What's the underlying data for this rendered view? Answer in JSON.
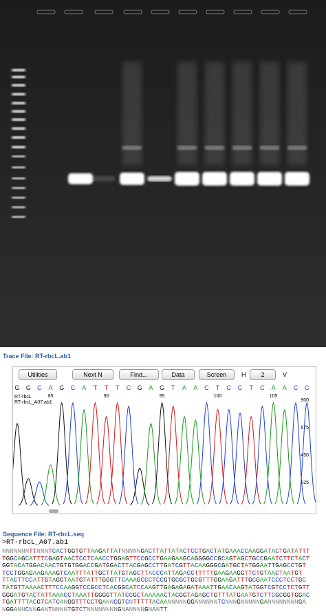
{
  "trace_file": {
    "label": "Trace File: RT-rbcL.ab1",
    "toolbar": {
      "buttons": [
        "Utilities",
        "Next N",
        "Find...",
        "Data",
        "Screen"
      ],
      "h_label": "H",
      "h_value": "2",
      "v_label": "V"
    },
    "bases": [
      "G",
      "G",
      "C",
      "A",
      "G",
      "C",
      "A",
      "T",
      "T",
      "T",
      "C",
      "G",
      "A",
      "G",
      "T",
      "A",
      "A",
      "C",
      "T",
      "C",
      "C",
      "T",
      "C",
      "A",
      "A",
      "C",
      "C"
    ],
    "positions": [
      85,
      90,
      95,
      100,
      105
    ],
    "trace_names": [
      "RT-rbcL",
      "RT-rbcL_A07.ab1"
    ],
    "scale": [
      900,
      675,
      450,
      225
    ]
  },
  "sequence_file": {
    "label": "Sequence File: RT-rbcL.seq",
    "header": ">RT-rbcL_A07.ab1",
    "lines": [
      "NNNNNNNTTNNNTCACTGGTGTTAAGATTATNNNNNGACTTATTATACTCCTGACTATGAAACCAAGGATACTGATATTT",
      "TGGCAGCATTTCGAGTAACTCCTCAACCTGGAGTTCCGCCTGAAGAAGCAGGGGCCGCAGTAGCTGCCGAATCTTCTACT",
      "GGTACATGGACAACTGTGTGGACCGATGGACTTACGAGCCTTGATCGTTACAAGGGCGATGCTATGGAATTGAGCCTGT",
      "TCCTGGAGAAGAAAGTCAATTTATTGCTTATGTAGCTTACCCATTAGACCTTTTTGAAGAAGGTTCTGTAACTAATGT",
      "TTACTTCCATTGTAGGTAATGTATTTGGGTTCAAAGCCCTCCGTGCGCTGCGTTTGGAAGATTTGCGAATCCCTCCTGC",
      "TATGTTAAAACTTTCCAAGGTCCGCCTCACGGCATCCAAGTTGAGAGAGATAAATTGAACAAGTATGGTCGTCCTCTGTT",
      "GGGATGTACTATTAAACCTAAATTGGGGTTATCCGCTAAAAACTACGGTAGAGCTGTTTATGAATGTCTTCGCGGTGGAC",
      "TGATTTTACGTCATCANGGTTTCCTGANNCGTCNTTTTTACAANNNNNGGANNNNNTCNNNGNNNNNGANNNNNNNNGA",
      "NGGANNCNNGANTNNNNTGTCTNNNNNNNNGNANNNNGNANTT"
    ]
  }
}
